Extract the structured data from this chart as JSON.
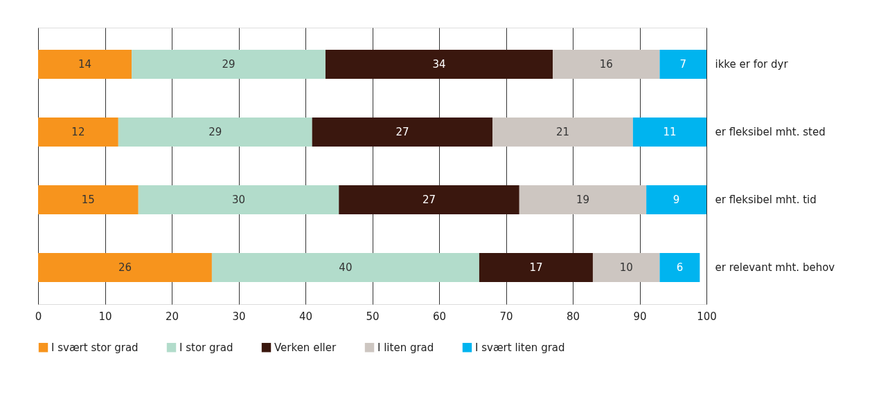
{
  "chart_data": {
    "type": "bar",
    "orientation": "horizontal",
    "stacked": true,
    "data_labels": true,
    "categories": [
      "ikke er for dyr",
      "er fleksibel mht. sted",
      "er fleksibel mht. tid",
      "er relevant mht. behov"
    ],
    "series": [
      {
        "name": "I svært stor grad",
        "color": "#f7941d",
        "values": [
          14,
          12,
          15,
          26
        ]
      },
      {
        "name": "I stor grad",
        "color": "#b2dccb",
        "values": [
          29,
          29,
          30,
          40
        ]
      },
      {
        "name": "Verken eller",
        "color": "#3a170e",
        "values": [
          34,
          27,
          27,
          17
        ]
      },
      {
        "name": "I liten grad",
        "color": "#cdc6c1",
        "values": [
          16,
          21,
          19,
          10
        ]
      },
      {
        "name": "I svært liten grad",
        "color": "#00b4ef",
        "values": [
          7,
          11,
          9,
          6
        ]
      }
    ],
    "xlim": [
      0,
      100
    ],
    "xticks": [
      0,
      10,
      20,
      30,
      40,
      50,
      60,
      70,
      80,
      90,
      100
    ],
    "grid": "x",
    "legend": "bottom"
  }
}
